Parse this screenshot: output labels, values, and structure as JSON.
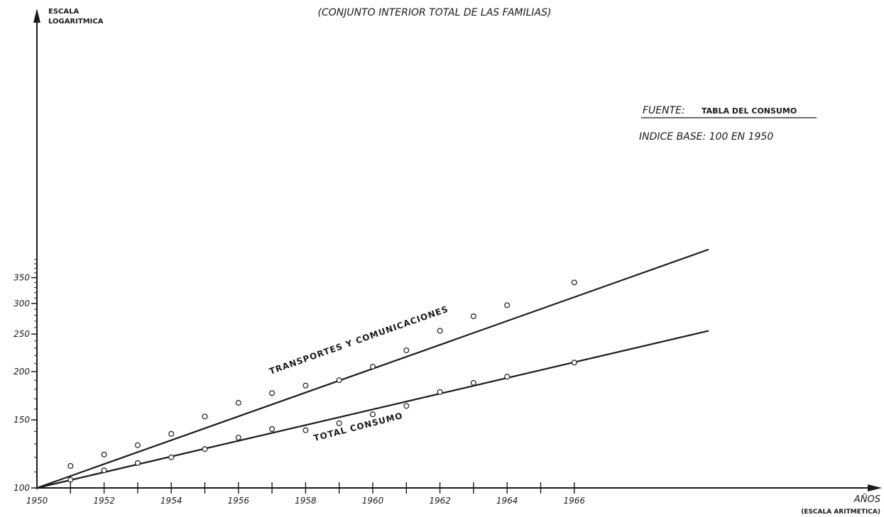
{
  "chart_data": {
    "type": "line",
    "title": "(CONJUNTO INTERIOR TOTAL DE LAS FAMILIAS)",
    "source_label": "FUENTE:",
    "source_value": "TABLA DEL CONSUMO",
    "index_note": "INDICE BASE: 100 EN 1950",
    "y_axis_label_line1": "ESCALA",
    "y_axis_label_line2": "LOGARITMICA",
    "x_axis_label_line1": "AÑOS",
    "x_axis_label_line2": "(ESCALA ARITMETICA)",
    "y_scale": "log",
    "ylim": [
      100,
      900
    ],
    "xlim": [
      1950,
      1974
    ],
    "x_tick_labels": [
      "1950",
      "1952",
      "1954",
      "1956",
      "1958",
      "1960",
      "1962",
      "1964",
      "1966"
    ],
    "y_tick_labels": [
      "100",
      "150",
      "200",
      "250",
      "300",
      "350"
    ],
    "grid": false,
    "series": [
      {
        "name": "TRANSPORTES Y COMUNICACIONES",
        "color": "#1a1a1a",
        "points": [
          {
            "x": 1951,
            "y": 114
          },
          {
            "x": 1952,
            "y": 122
          },
          {
            "x": 1953,
            "y": 129
          },
          {
            "x": 1954,
            "y": 138
          },
          {
            "x": 1955,
            "y": 153
          },
          {
            "x": 1956,
            "y": 166
          },
          {
            "x": 1957,
            "y": 176
          },
          {
            "x": 1958,
            "y": 184
          },
          {
            "x": 1959,
            "y": 190
          },
          {
            "x": 1960,
            "y": 206
          },
          {
            "x": 1961,
            "y": 227
          },
          {
            "x": 1962,
            "y": 255
          },
          {
            "x": 1963,
            "y": 278
          },
          {
            "x": 1964,
            "y": 297
          },
          {
            "x": 1966,
            "y": 340
          }
        ],
        "trend": [
          {
            "x": 1950,
            "y": 100
          },
          {
            "x": 1970,
            "y": 414
          }
        ]
      },
      {
        "name": "TOTAL CONSUMO",
        "color": "#1a1a1a",
        "points": [
          {
            "x": 1951,
            "y": 105
          },
          {
            "x": 1952,
            "y": 111
          },
          {
            "x": 1953,
            "y": 116
          },
          {
            "x": 1954,
            "y": 120
          },
          {
            "x": 1955,
            "y": 126
          },
          {
            "x": 1956,
            "y": 135
          },
          {
            "x": 1957,
            "y": 142
          },
          {
            "x": 1958,
            "y": 141
          },
          {
            "x": 1959,
            "y": 147
          },
          {
            "x": 1960,
            "y": 155
          },
          {
            "x": 1961,
            "y": 163
          },
          {
            "x": 1962,
            "y": 177
          },
          {
            "x": 1963,
            "y": 187
          },
          {
            "x": 1964,
            "y": 194
          },
          {
            "x": 1966,
            "y": 211
          }
        ],
        "trend": [
          {
            "x": 1950,
            "y": 100
          },
          {
            "x": 1970,
            "y": 255
          }
        ]
      }
    ]
  }
}
